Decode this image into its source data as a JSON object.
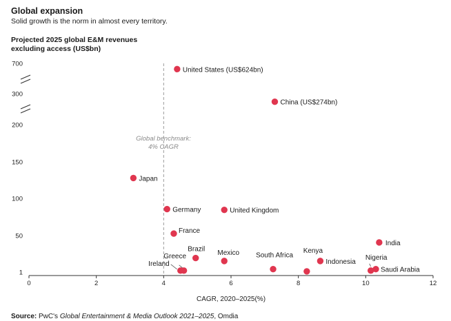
{
  "header": {
    "title": "Global expansion",
    "subtitle": "Solid growth is the norm in almost every territory."
  },
  "source": {
    "label": "Source:",
    "pre": " PwC's ",
    "italic": "Global Entertainment & Media Outlook 2021–2025",
    "post": ", Omdia"
  },
  "colors": {
    "marker": "#e0364f",
    "axis": "#333333",
    "benchmark": "#999999"
  },
  "chart_data": {
    "type": "scatter",
    "title": "Global expansion",
    "subtitle": "Solid growth is the norm in almost every territory.",
    "ylabel": "Projected 2025 global E&M revenues excluding access (US$bn)",
    "xlabel": "CAGR, 2020–2025(%)",
    "xlim": [
      0,
      12
    ],
    "xticks": [
      "0",
      "2",
      "4",
      "6",
      "8",
      "10",
      "12"
    ],
    "yticks": [
      "1",
      "50",
      "100",
      "150",
      "200",
      "300",
      "700"
    ],
    "y_axis_breaks": "broken axis between 200 and 300 and between 300 and 700",
    "grid": false,
    "benchmark": {
      "x": 4,
      "label_line1": "Global benchmark:",
      "label_line2": "4% CAGR"
    },
    "points": [
      {
        "label": "United States (US$624bn)",
        "x": 4.4,
        "y": 624
      },
      {
        "label": "China (US$274bn)",
        "x": 7.3,
        "y": 274
      },
      {
        "label": "Japan",
        "x": 3.1,
        "y": 128
      },
      {
        "label": "Germany",
        "x": 4.1,
        "y": 86
      },
      {
        "label": "United Kingdom",
        "x": 5.8,
        "y": 85
      },
      {
        "label": "France",
        "x": 4.3,
        "y": 53
      },
      {
        "label": "India",
        "x": 10.4,
        "y": 41
      },
      {
        "label": "Brazil",
        "x": 4.95,
        "y": 20
      },
      {
        "label": "Mexico",
        "x": 5.8,
        "y": 16
      },
      {
        "label": "Indonesia",
        "x": 8.65,
        "y": 16
      },
      {
        "label": "Greece",
        "x": 4.6,
        "y": 3
      },
      {
        "label": "Ireland",
        "x": 4.5,
        "y": 3
      },
      {
        "label": "South Africa",
        "x": 7.25,
        "y": 5
      },
      {
        "label": "Kenya",
        "x": 8.25,
        "y": 2
      },
      {
        "label": "Nigeria",
        "x": 10.15,
        "y": 3
      },
      {
        "label": "Saudi Arabia",
        "x": 10.3,
        "y": 5
      }
    ]
  }
}
